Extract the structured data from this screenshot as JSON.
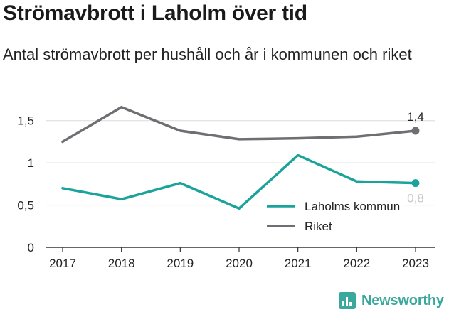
{
  "chart_data": {
    "type": "line",
    "title": "Strömavbrott i Laholm över tid",
    "subtitle": "Antal strömavbrott per hushåll och år i kommunen och riket",
    "categories": [
      "2017",
      "2018",
      "2019",
      "2020",
      "2021",
      "2022",
      "2023"
    ],
    "series": [
      {
        "name": "Laholms kommun",
        "values": [
          0.7,
          0.57,
          0.76,
          0.46,
          1.09,
          0.78,
          0.76
        ],
        "color": "#1aa39b",
        "end_label": "0,8"
      },
      {
        "name": "Riket",
        "values": [
          1.25,
          1.66,
          1.38,
          1.28,
          1.29,
          1.31,
          1.38
        ],
        "color": "#6e6e73",
        "end_label": "1,4"
      }
    ],
    "ylim": [
      0,
      1.75
    ],
    "yticks": [
      {
        "value": 0,
        "label": "0"
      },
      {
        "value": 0.5,
        "label": "0,5"
      },
      {
        "value": 1,
        "label": "1"
      },
      {
        "value": 1.5,
        "label": "1,5"
      }
    ],
    "xlabel": "",
    "ylabel": "",
    "grid": true,
    "legend_position": "bottom-right"
  },
  "branding": {
    "logo_text": "Newsworthy",
    "logo_color": "#3aa89d"
  }
}
